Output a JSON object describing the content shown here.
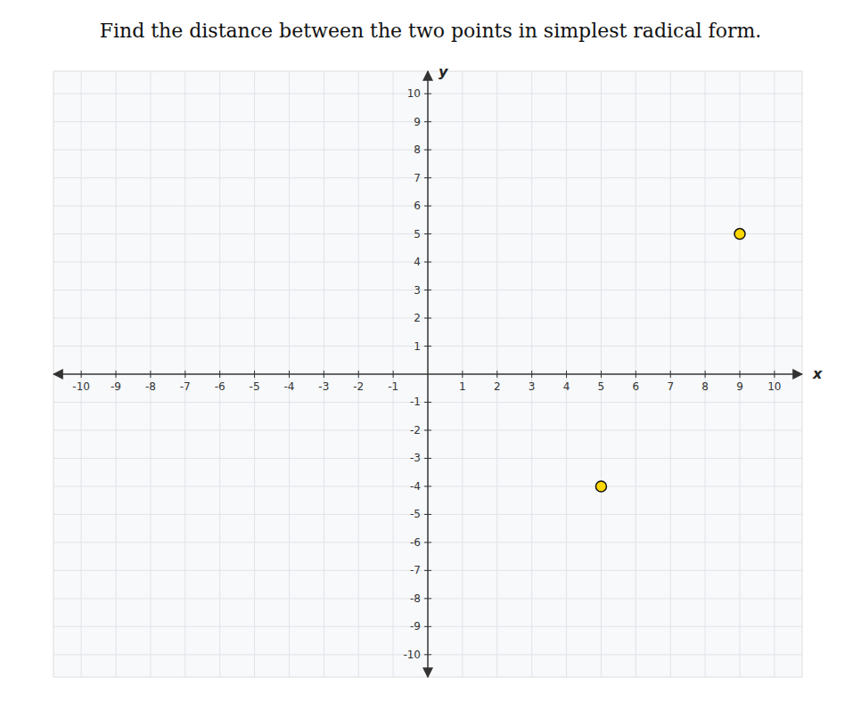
{
  "chart_data": {
    "type": "scatter",
    "title": "Find the distance between the two points in simplest radical form.",
    "x_label": "x",
    "y_label": "y",
    "x": [
      9,
      5
    ],
    "values": [
      5,
      -4
    ],
    "color": "#FFD700",
    "xlim": [
      -10.8,
      10.8
    ],
    "ylim": [
      -10.8,
      10.8
    ],
    "xticks": [
      -10,
      -9,
      -8,
      -7,
      -6,
      -5,
      -4,
      -3,
      -2,
      -1,
      1,
      2,
      3,
      4,
      5,
      6,
      7,
      8,
      9,
      10
    ],
    "yticks": [
      -10,
      -9,
      -8,
      -7,
      -6,
      -5,
      -4,
      -3,
      -2,
      -1,
      1,
      2,
      3,
      4,
      5,
      6,
      7,
      8,
      9,
      10
    ],
    "grid": true
  }
}
